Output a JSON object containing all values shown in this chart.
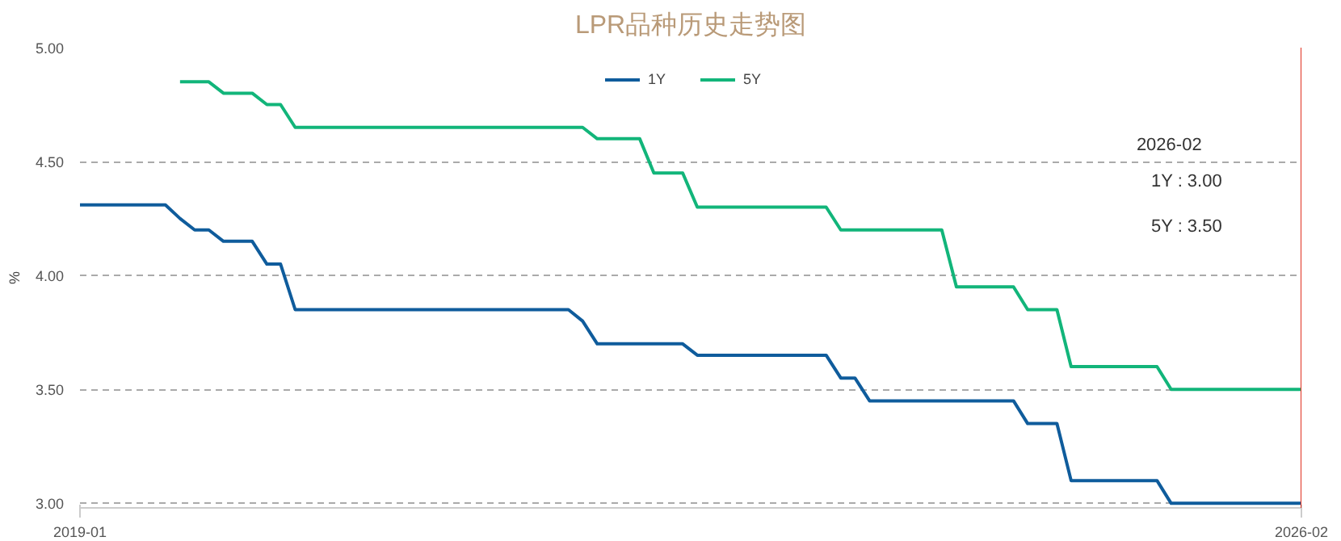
{
  "chart_data": {
    "type": "line",
    "title": "LPR品种历史走势图",
    "ylabel": "%",
    "xlim": [
      "2019-01",
      "2026-02"
    ],
    "xticks": [
      "2019-01",
      "2026-02"
    ],
    "ylim": [
      2.98,
      5.0
    ],
    "yticks": [
      {
        "value": 3.0,
        "label": "3.00"
      },
      {
        "value": 3.5,
        "label": "3.50"
      },
      {
        "value": 4.0,
        "label": "4.00"
      },
      {
        "value": 4.5,
        "label": "4.50"
      },
      {
        "value": 5.0,
        "label": "5.00"
      }
    ],
    "grid": "y",
    "legend": "top",
    "marker": "none",
    "line_style": "solid",
    "series": [
      {
        "name": "1Y",
        "color": "#0f5c9c",
        "x": [
          "2019-01",
          "2019-07",
          "2019-08",
          "2019-09",
          "2019-10",
          "2019-11",
          "2020-01",
          "2020-02",
          "2020-03",
          "2020-04",
          "2021-11",
          "2021-12",
          "2022-01",
          "2022-07",
          "2022-08",
          "2023-05",
          "2023-06",
          "2023-07",
          "2023-08",
          "2024-06",
          "2024-07",
          "2024-09",
          "2024-10",
          "2025-04",
          "2025-05",
          "2026-02"
        ],
        "values": [
          4.31,
          4.31,
          4.25,
          4.2,
          4.2,
          4.15,
          4.15,
          4.05,
          4.05,
          3.85,
          3.85,
          3.8,
          3.7,
          3.7,
          3.65,
          3.65,
          3.55,
          3.55,
          3.45,
          3.45,
          3.35,
          3.35,
          3.1,
          3.1,
          3.0,
          3.0
        ]
      },
      {
        "name": "5Y",
        "color": "#12b57a",
        "x": [
          "2019-08",
          "2019-10",
          "2019-11",
          "2020-01",
          "2020-02",
          "2020-03",
          "2020-04",
          "2021-12",
          "2022-01",
          "2022-04",
          "2022-05",
          "2022-07",
          "2022-08",
          "2023-05",
          "2023-06",
          "2024-01",
          "2024-02",
          "2024-06",
          "2024-07",
          "2024-09",
          "2024-10",
          "2025-04",
          "2025-05",
          "2026-02"
        ],
        "values": [
          4.85,
          4.85,
          4.8,
          4.8,
          4.75,
          4.75,
          4.65,
          4.65,
          4.6,
          4.6,
          4.45,
          4.45,
          4.3,
          4.3,
          4.2,
          4.2,
          3.95,
          3.95,
          3.85,
          3.85,
          3.6,
          3.6,
          3.5,
          3.5
        ]
      }
    ],
    "ref_lines": [
      {
        "axis": "x",
        "value": "2026-02",
        "color": "#e0301e"
      }
    ],
    "annotations": [
      "2026-02",
      "1Y  : 3.00",
      "5Y  : 3.50"
    ]
  }
}
